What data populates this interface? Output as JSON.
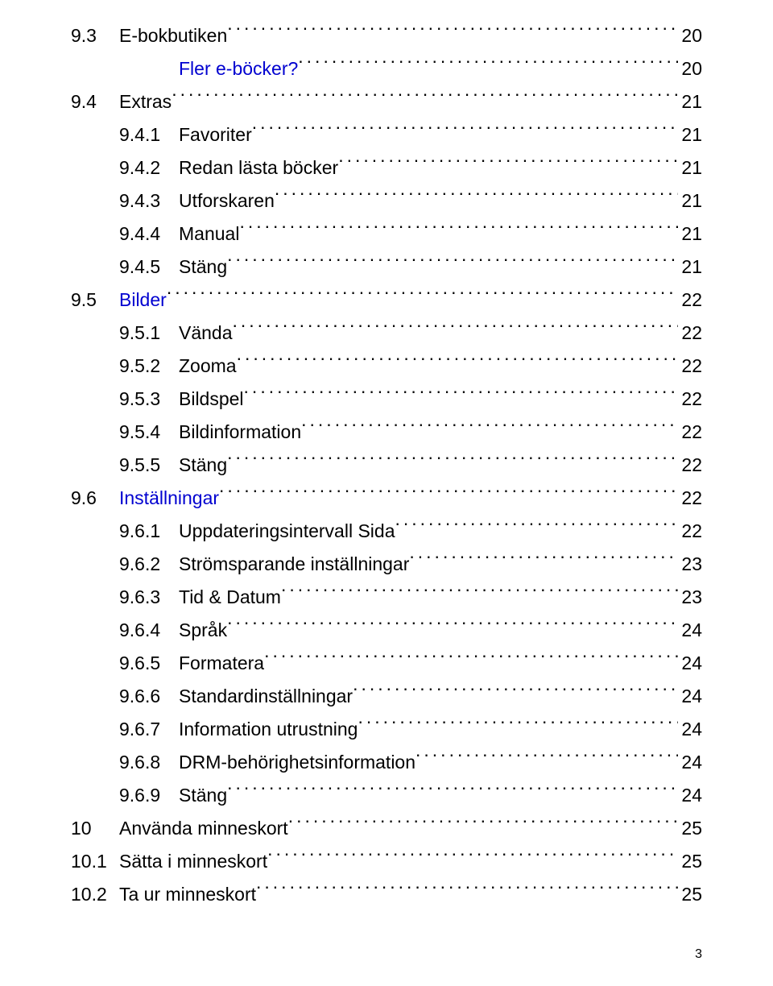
{
  "entries": [
    {
      "level": 1,
      "num": "9.3",
      "title": "E-bokbutiken",
      "page": "20",
      "link": false
    },
    {
      "level": 2,
      "num": "",
      "title": "Fler e-böcker?",
      "page": "20",
      "link": true
    },
    {
      "level": 1,
      "num": "9.4",
      "title": "Extras",
      "page": "21",
      "link": false
    },
    {
      "level": 3,
      "num": "9.4.1",
      "title": "Favoriter",
      "page": "21",
      "link": false
    },
    {
      "level": 3,
      "num": "9.4.2",
      "title": "Redan lästa böcker",
      "page": "21",
      "link": false
    },
    {
      "level": 3,
      "num": "9.4.3",
      "title": "Utforskaren",
      "page": "21",
      "link": false
    },
    {
      "level": 3,
      "num": "9.4.4",
      "title": "Manual",
      "page": "21",
      "link": false
    },
    {
      "level": 3,
      "num": "9.4.5",
      "title": "Stäng",
      "page": "21",
      "link": false
    },
    {
      "level": 1,
      "num": "9.5",
      "title": "Bilder",
      "page": "22",
      "link": true
    },
    {
      "level": 3,
      "num": "9.5.1",
      "title": "Vända",
      "page": "22",
      "link": false
    },
    {
      "level": 3,
      "num": "9.5.2",
      "title": "Zooma",
      "page": "22",
      "link": false
    },
    {
      "level": 3,
      "num": "9.5.3",
      "title": "Bildspel",
      "page": "22",
      "link": false
    },
    {
      "level": 3,
      "num": "9.5.4",
      "title": "Bildinformation",
      "page": "22",
      "link": false
    },
    {
      "level": 3,
      "num": "9.5.5",
      "title": "Stäng",
      "page": "22",
      "link": false
    },
    {
      "level": 1,
      "num": "9.6",
      "title": "Inställningar",
      "page": "22",
      "link": true
    },
    {
      "level": 3,
      "num": "9.6.1",
      "title": "Uppdateringsintervall Sida",
      "page": "22",
      "link": false
    },
    {
      "level": 3,
      "num": "9.6.2",
      "title": "Strömsparande inställningar",
      "page": "23",
      "link": false
    },
    {
      "level": 3,
      "num": "9.6.3",
      "title": "Tid & Datum",
      "page": "23",
      "link": false
    },
    {
      "level": 3,
      "num": "9.6.4",
      "title": "Språk",
      "page": "24",
      "link": false
    },
    {
      "level": 3,
      "num": "9.6.5",
      "title": "Formatera",
      "page": "24",
      "link": false
    },
    {
      "level": 3,
      "num": "9.6.6",
      "title": "Standardinställningar",
      "page": "24",
      "link": false
    },
    {
      "level": 3,
      "num": "9.6.7",
      "title": "Information utrustning",
      "page": "24",
      "link": false
    },
    {
      "level": 3,
      "num": "9.6.8",
      "title": "DRM-behörighetsinformation",
      "page": "24",
      "link": false
    },
    {
      "level": 3,
      "num": "9.6.9",
      "title": "Stäng",
      "page": "24",
      "link": false
    },
    {
      "level": 1,
      "num": "10",
      "title": "Använda minneskort",
      "page": "25",
      "link": false
    },
    {
      "level": 1,
      "num": "10.1",
      "title": "Sätta i minneskort",
      "page": "25",
      "link": false
    },
    {
      "level": 1,
      "num": "10.2",
      "title": "Ta ur minneskort",
      "page": "25",
      "link": false
    }
  ],
  "pageNumber": "3"
}
